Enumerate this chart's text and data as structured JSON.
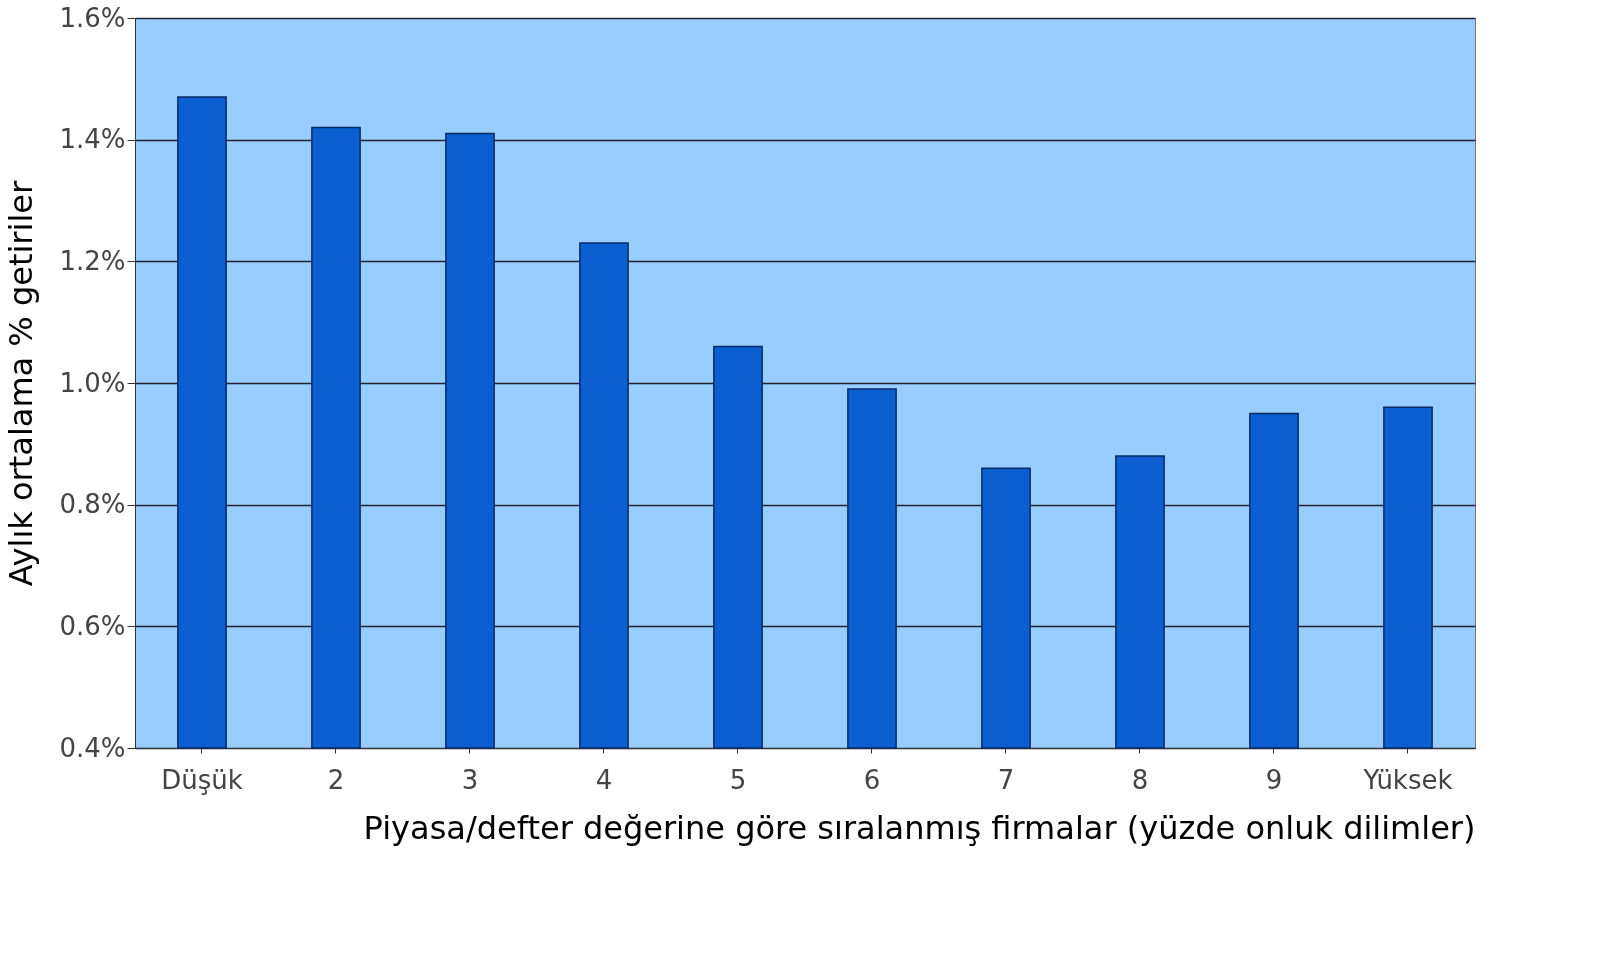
{
  "chart_data": {
    "type": "bar",
    "xlabel": "Piyasa/defter değerine göre sıralanmış firmalar (yüzde onluk dilimler)",
    "ylabel": "Aylık ortalama % getiriler",
    "categories": [
      "Düşük",
      "2",
      "3",
      "4",
      "5",
      "6",
      "7",
      "8",
      "9",
      "Yüksek"
    ],
    "values": [
      1.47,
      1.42,
      1.41,
      1.23,
      1.06,
      0.99,
      0.86,
      0.88,
      0.95,
      0.96
    ],
    "color": "#0b5fd1",
    "ylim": [
      0.4,
      1.6
    ],
    "yticks": [
      {
        "value": 0.4,
        "label": "0.4%"
      },
      {
        "value": 0.6,
        "label": "0.6%"
      },
      {
        "value": 0.8,
        "label": "0.8%"
      },
      {
        "value": 1.0,
        "label": "1.0%"
      },
      {
        "value": 1.2,
        "label": "1.2%"
      },
      {
        "value": 1.4,
        "label": "1.4%"
      },
      {
        "value": 1.6,
        "label": "1.6%"
      }
    ],
    "grid": "y"
  }
}
